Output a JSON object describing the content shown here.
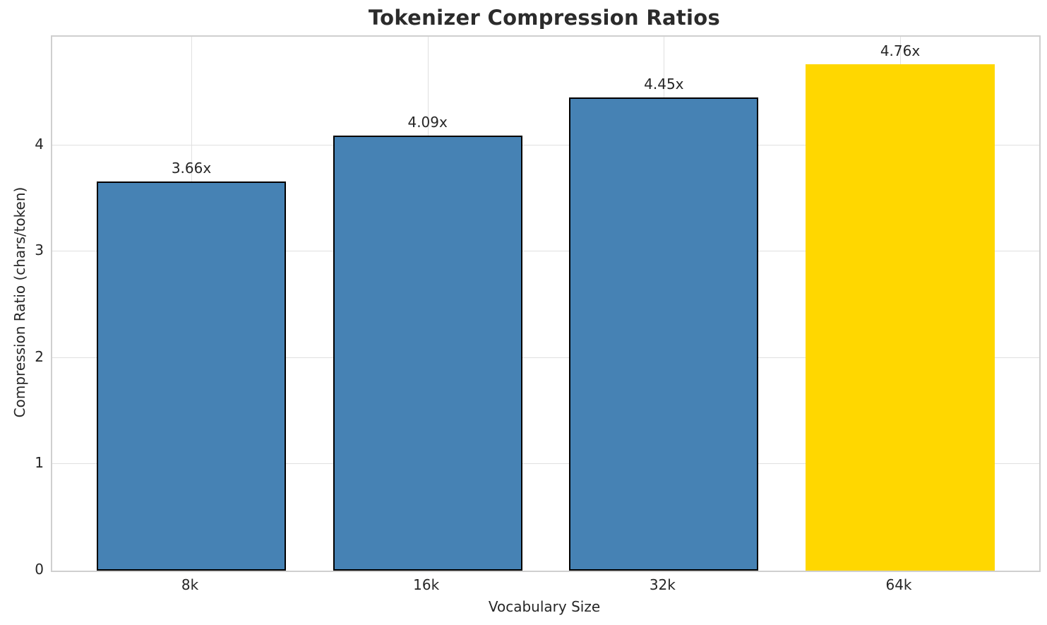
{
  "chart_data": {
    "type": "bar",
    "title": "Tokenizer Compression Ratios",
    "xlabel": "Vocabulary Size",
    "ylabel": "Compression Ratio (chars/token)",
    "categories": [
      "8k",
      "16k",
      "32k",
      "64k"
    ],
    "values": [
      3.66,
      4.09,
      4.45,
      4.76
    ],
    "bar_labels": [
      "3.66x",
      "4.09x",
      "4.45x",
      "4.76x"
    ],
    "bar_colors": [
      "#4682B4",
      "#4682B4",
      "#4682B4",
      "#FFD700"
    ],
    "bar_edge_colors": [
      "#000000",
      "#000000",
      "#000000",
      "none"
    ],
    "yticks": [
      0,
      1,
      2,
      3,
      4
    ],
    "ylim": [
      0,
      5.02
    ],
    "grid": true,
    "legend": "none",
    "style": {
      "grid_color": "#e0e0e0",
      "spine_color": "#cfcfcf",
      "text_color": "#262626",
      "background": "#ffffff"
    }
  }
}
